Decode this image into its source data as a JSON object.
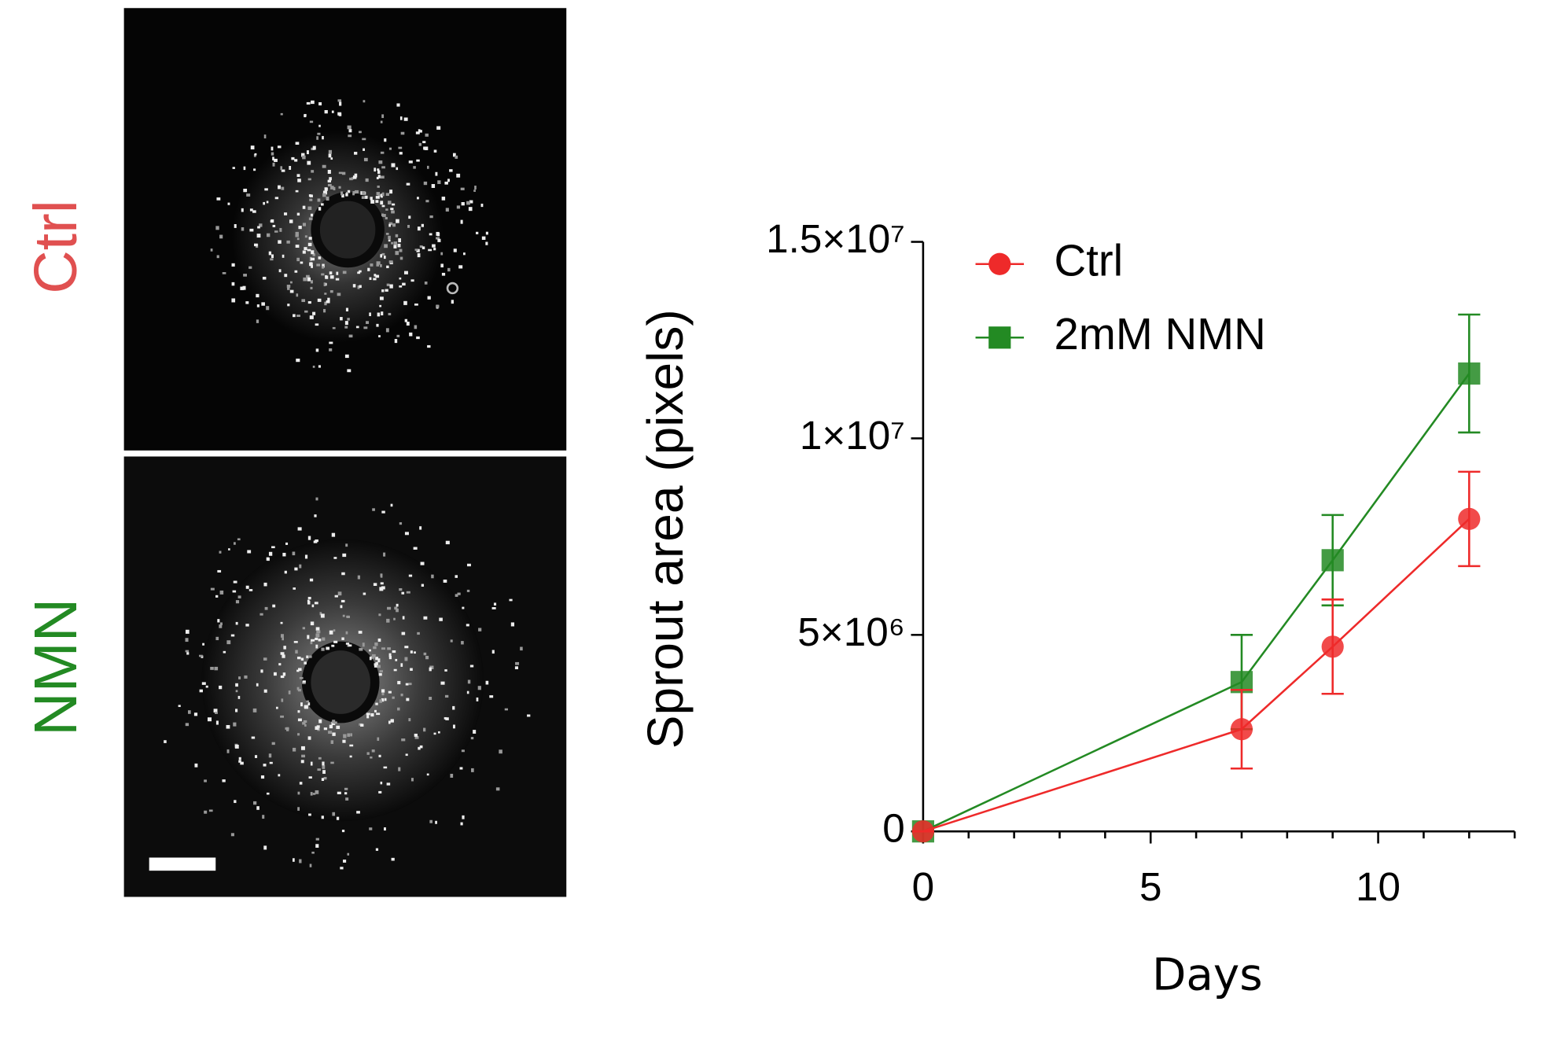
{
  "panels": {
    "labels": [
      "Ctrl",
      "NMN"
    ],
    "label_colors": [
      "#e05050",
      "#238a23"
    ]
  },
  "chart_data": {
    "type": "line",
    "x_label": "Days",
    "y_label": "Sprout area (pixels)",
    "x": [
      0,
      7,
      9,
      12
    ],
    "series": [
      {
        "name": "Ctrl",
        "color": "#ee2a2a",
        "marker": "circle",
        "values": [
          0,
          2600000,
          4700000,
          7950000
        ],
        "errors": [
          0,
          1000000,
          1200000,
          1200000
        ]
      },
      {
        "name": "2mM NMN",
        "color": "#238a23",
        "marker": "square",
        "values": [
          0,
          3800000,
          6900000,
          11650000
        ],
        "errors": [
          0,
          1200000,
          1150000,
          1500000
        ]
      }
    ],
    "xlim": [
      0,
      13
    ],
    "xticks": [
      0,
      5,
      10
    ],
    "xminorticks": [
      1,
      2,
      3,
      4,
      6,
      7,
      8,
      9,
      11,
      12,
      13
    ],
    "ylim": [
      0,
      15000000
    ],
    "yticks": [
      0,
      {
        "value": 5000000,
        "label": "5×10⁶"
      },
      {
        "value": 10000000,
        "label": "1×10⁷"
      },
      {
        "value": 15000000,
        "label": "1.5×10⁷"
      }
    ],
    "legend": "upper left"
  }
}
